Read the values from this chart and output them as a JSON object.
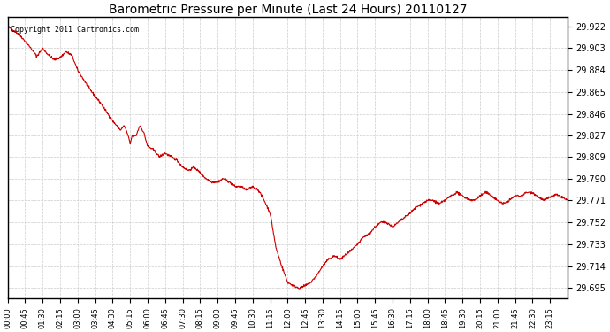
{
  "title": "Barometric Pressure per Minute (Last 24 Hours) 20110127",
  "copyright_text": "Copyright 2011 Cartronics.com",
  "line_color": "#cc0000",
  "background_color": "#ffffff",
  "plot_background_color": "#ffffff",
  "grid_color": "#cccccc",
  "grid_style": "--",
  "yticks": [
    29.695,
    29.714,
    29.733,
    29.752,
    29.771,
    29.79,
    29.809,
    29.827,
    29.846,
    29.865,
    29.884,
    29.903,
    29.922
  ],
  "ylim": [
    29.686,
    29.93
  ],
  "xtick_labels": [
    "00:00",
    "00:45",
    "01:30",
    "02:15",
    "03:00",
    "03:45",
    "04:30",
    "05:15",
    "06:00",
    "06:45",
    "07:30",
    "08:15",
    "09:00",
    "09:45",
    "10:30",
    "11:15",
    "12:00",
    "12:45",
    "13:30",
    "14:15",
    "15:00",
    "15:45",
    "16:30",
    "17:15",
    "18:00",
    "18:45",
    "19:30",
    "20:15",
    "21:00",
    "21:45",
    "22:30",
    "23:15"
  ],
  "waypoints": [
    [
      0,
      29.922
    ],
    [
      30,
      29.915
    ],
    [
      60,
      29.903
    ],
    [
      75,
      29.896
    ],
    [
      90,
      29.903
    ],
    [
      105,
      29.897
    ],
    [
      120,
      29.893
    ],
    [
      135,
      29.895
    ],
    [
      150,
      29.9
    ],
    [
      165,
      29.897
    ],
    [
      180,
      29.884
    ],
    [
      210,
      29.868
    ],
    [
      240,
      29.855
    ],
    [
      270,
      29.84
    ],
    [
      290,
      29.832
    ],
    [
      300,
      29.836
    ],
    [
      310,
      29.827
    ],
    [
      315,
      29.82
    ],
    [
      320,
      29.827
    ],
    [
      330,
      29.827
    ],
    [
      340,
      29.836
    ],
    [
      350,
      29.83
    ],
    [
      360,
      29.818
    ],
    [
      375,
      29.815
    ],
    [
      390,
      29.809
    ],
    [
      405,
      29.812
    ],
    [
      420,
      29.809
    ],
    [
      435,
      29.806
    ],
    [
      450,
      29.8
    ],
    [
      465,
      29.797
    ],
    [
      480,
      29.8
    ],
    [
      495,
      29.795
    ],
    [
      510,
      29.79
    ],
    [
      525,
      29.787
    ],
    [
      540,
      29.787
    ],
    [
      555,
      29.79
    ],
    [
      570,
      29.787
    ],
    [
      585,
      29.783
    ],
    [
      600,
      29.783
    ],
    [
      615,
      29.78
    ],
    [
      630,
      29.783
    ],
    [
      645,
      29.78
    ],
    [
      660,
      29.771
    ],
    [
      675,
      29.76
    ],
    [
      690,
      29.73
    ],
    [
      705,
      29.714
    ],
    [
      720,
      29.7
    ],
    [
      735,
      29.697
    ],
    [
      750,
      29.695
    ],
    [
      765,
      29.697
    ],
    [
      780,
      29.7
    ],
    [
      795,
      29.706
    ],
    [
      810,
      29.714
    ],
    [
      825,
      29.72
    ],
    [
      840,
      29.723
    ],
    [
      855,
      29.72
    ],
    [
      870,
      29.724
    ],
    [
      885,
      29.728
    ],
    [
      900,
      29.733
    ],
    [
      915,
      29.739
    ],
    [
      930,
      29.742
    ],
    [
      945,
      29.748
    ],
    [
      960,
      29.752
    ],
    [
      975,
      29.752
    ],
    [
      990,
      29.748
    ],
    [
      1005,
      29.752
    ],
    [
      1020,
      29.756
    ],
    [
      1035,
      29.76
    ],
    [
      1050,
      29.765
    ],
    [
      1065,
      29.768
    ],
    [
      1080,
      29.771
    ],
    [
      1095,
      29.771
    ],
    [
      1110,
      29.768
    ],
    [
      1125,
      29.771
    ],
    [
      1140,
      29.775
    ],
    [
      1155,
      29.778
    ],
    [
      1170,
      29.775
    ],
    [
      1185,
      29.772
    ],
    [
      1200,
      29.771
    ],
    [
      1215,
      29.775
    ],
    [
      1230,
      29.778
    ],
    [
      1245,
      29.775
    ],
    [
      1260,
      29.771
    ],
    [
      1275,
      29.768
    ],
    [
      1290,
      29.771
    ],
    [
      1305,
      29.775
    ],
    [
      1320,
      29.775
    ],
    [
      1335,
      29.778
    ],
    [
      1350,
      29.778
    ],
    [
      1365,
      29.774
    ],
    [
      1380,
      29.771
    ],
    [
      1395,
      29.774
    ],
    [
      1410,
      29.776
    ],
    [
      1425,
      29.774
    ],
    [
      1440,
      29.771
    ]
  ]
}
